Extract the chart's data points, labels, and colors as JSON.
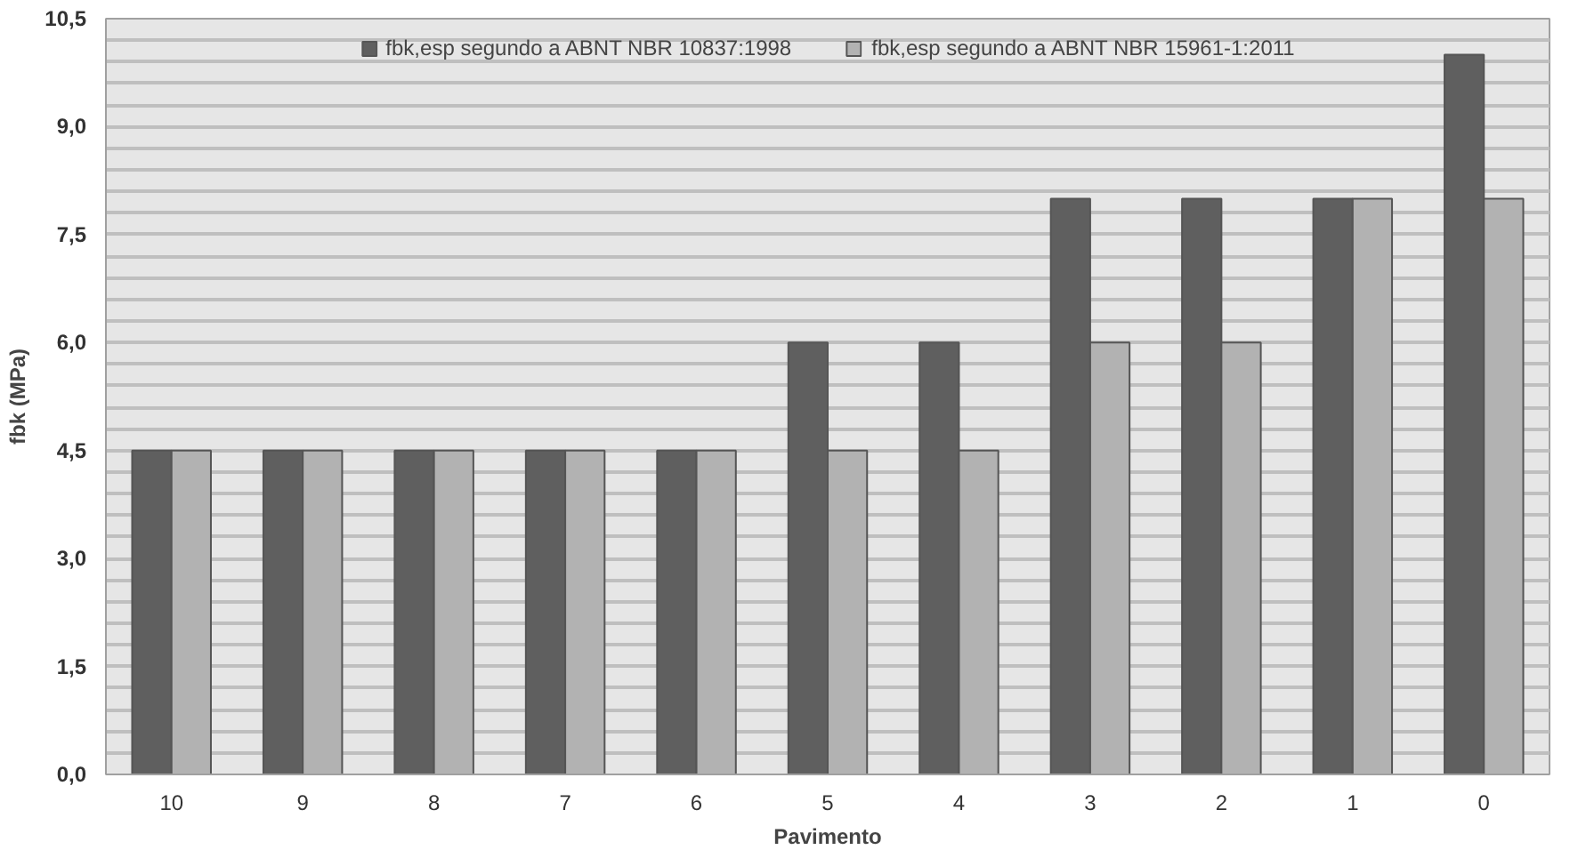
{
  "chart_data": {
    "type": "bar",
    "xlabel": "Pavimento",
    "ylabel": "fbk (MPa)",
    "categories": [
      "10",
      "9",
      "8",
      "7",
      "6",
      "5",
      "4",
      "3",
      "2",
      "1",
      "0"
    ],
    "series": [
      {
        "name": "fbk,esp segundo a ABNT NBR 10837:1998",
        "color": "#5f5f5f",
        "values": [
          4.5,
          4.5,
          4.5,
          4.5,
          4.5,
          6.0,
          6.0,
          8.0,
          8.0,
          8.0,
          10.0
        ]
      },
      {
        "name": "fbk,esp segundo a ABNT NBR 15961-1:2011",
        "color": "#b2b2b2",
        "values": [
          4.5,
          4.5,
          4.5,
          4.5,
          4.5,
          4.5,
          4.5,
          6.0,
          6.0,
          8.0,
          8.0
        ]
      }
    ],
    "ylim": [
      0,
      10.5
    ],
    "yticks": [
      {
        "value": 0,
        "label": "0,0"
      },
      {
        "value": 0.3,
        "label": null
      },
      {
        "value": 0.6,
        "label": null
      },
      {
        "value": 0.9,
        "label": null
      },
      {
        "value": 1.2,
        "label": null
      },
      {
        "value": 1.5,
        "label": "1,5"
      },
      {
        "value": 1.8,
        "label": null
      },
      {
        "value": 2.1,
        "label": null
      },
      {
        "value": 2.4,
        "label": null
      },
      {
        "value": 2.7,
        "label": null
      },
      {
        "value": 3.0,
        "label": "3,0"
      },
      {
        "value": 3.3,
        "label": null
      },
      {
        "value": 3.6,
        "label": null
      },
      {
        "value": 3.9,
        "label": null
      },
      {
        "value": 4.2,
        "label": null
      },
      {
        "value": 4.5,
        "label": "4,5"
      },
      {
        "value": 4.8,
        "label": null
      },
      {
        "value": 5.1,
        "label": null
      },
      {
        "value": 5.4,
        "label": null
      },
      {
        "value": 5.7,
        "label": null
      },
      {
        "value": 6.0,
        "label": "6,0"
      },
      {
        "value": 6.3,
        "label": null
      },
      {
        "value": 6.6,
        "label": null
      },
      {
        "value": 6.9,
        "label": null
      },
      {
        "value": 7.2,
        "label": null
      },
      {
        "value": 7.5,
        "label": "7,5"
      },
      {
        "value": 7.8,
        "label": null
      },
      {
        "value": 8.1,
        "label": null
      },
      {
        "value": 8.4,
        "label": null
      },
      {
        "value": 8.7,
        "label": null
      },
      {
        "value": 9.0,
        "label": "9,0"
      },
      {
        "value": 9.3,
        "label": null
      },
      {
        "value": 9.6,
        "label": null
      },
      {
        "value": 9.9,
        "label": null
      },
      {
        "value": 10.2,
        "label": null
      },
      {
        "value": 10.5,
        "label": "10,5"
      }
    ],
    "grid": "y",
    "legend": "top"
  }
}
